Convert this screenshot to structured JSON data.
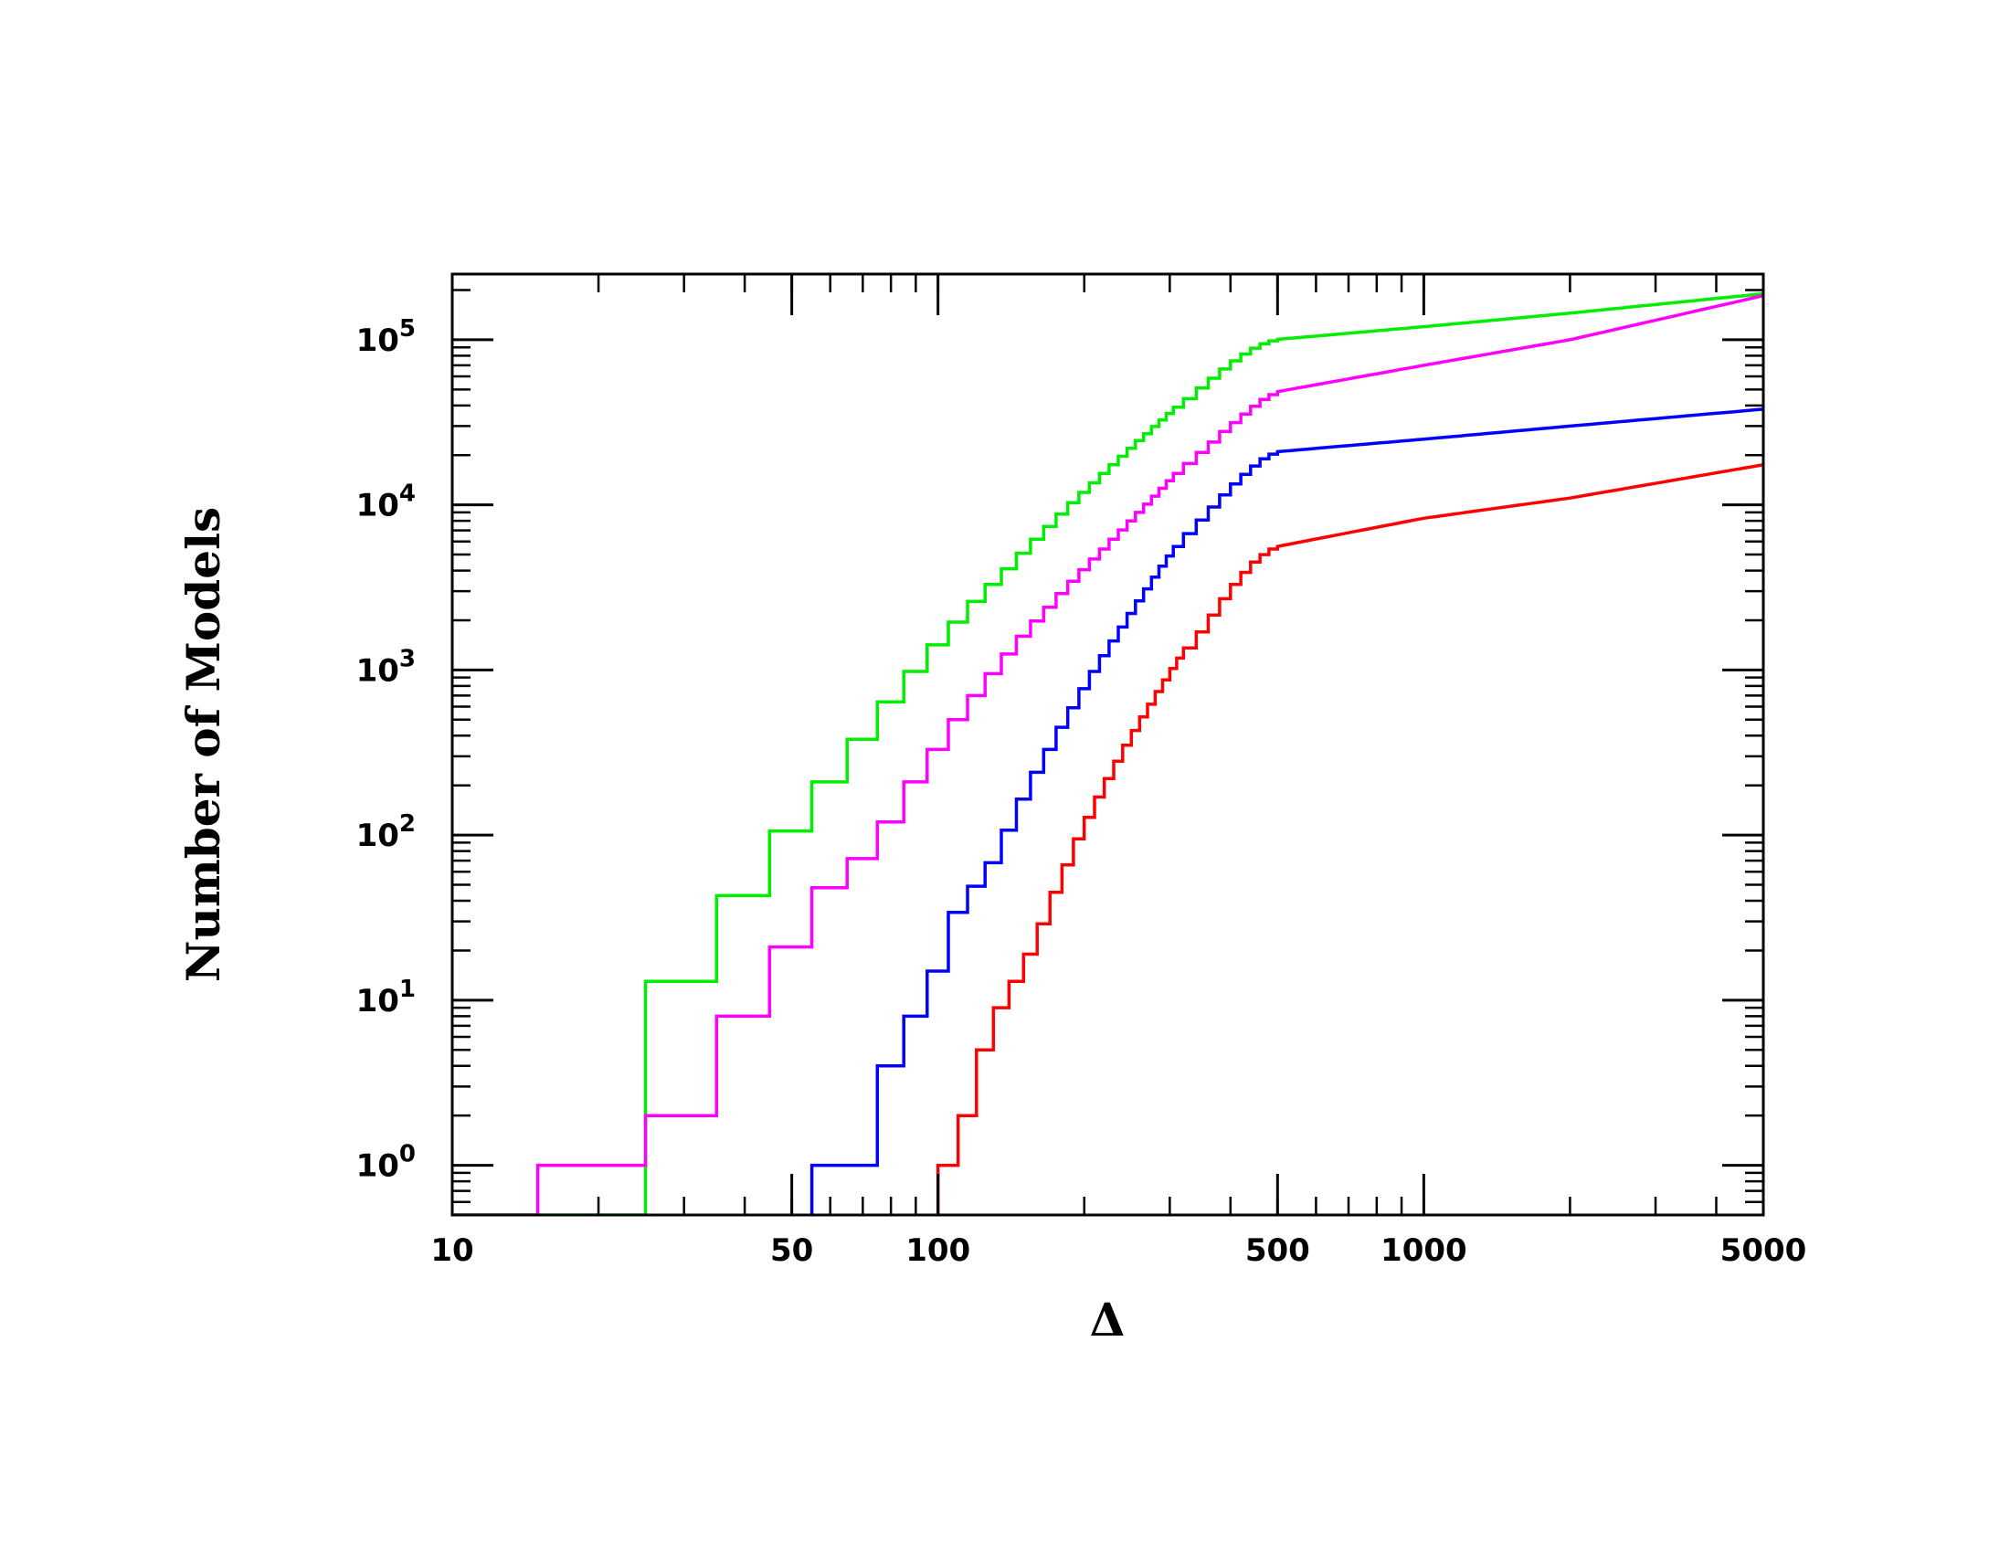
{
  "chart_data": {
    "type": "line",
    "xlabel": "Δ",
    "ylabel": "Number of Models",
    "x_scale": "log",
    "y_scale": "log",
    "xlim": [
      10,
      5000
    ],
    "ylim": [
      0.5,
      250000
    ],
    "x_ticks": [
      {
        "value": 10,
        "label": "10"
      },
      {
        "value": 50,
        "label": "50"
      },
      {
        "value": 100,
        "label": "100"
      },
      {
        "value": 500,
        "label": "500"
      },
      {
        "value": 1000,
        "label": "1000"
      },
      {
        "value": 5000,
        "label": "5000"
      }
    ],
    "y_ticks": [
      {
        "value": 1,
        "base": "10",
        "exp": "0"
      },
      {
        "value": 10,
        "base": "10",
        "exp": "1"
      },
      {
        "value": 100,
        "base": "10",
        "exp": "2"
      },
      {
        "value": 1000,
        "base": "10",
        "exp": "3"
      },
      {
        "value": 10000,
        "base": "10",
        "exp": "4"
      },
      {
        "value": 100000,
        "base": "10",
        "exp": "5"
      }
    ],
    "grid": false,
    "series": [
      {
        "color": "#00ee00",
        "step_x": [
          10,
          25,
          35,
          45,
          55,
          65,
          75,
          85,
          95,
          105,
          115,
          125,
          135,
          145,
          155,
          165,
          175,
          185,
          195,
          205,
          215,
          225,
          235,
          245,
          255,
          265,
          275,
          285,
          295,
          305,
          320,
          340,
          360,
          380,
          400,
          420,
          440,
          460,
          480,
          500
        ],
        "step_y": [
          0.5,
          13,
          43,
          106,
          210,
          380,
          640,
          980,
          1420,
          1950,
          2600,
          3300,
          4100,
          5100,
          6200,
          7400,
          8800,
          10300,
          11900,
          13600,
          15500,
          17500,
          19700,
          22000,
          24500,
          27000,
          29800,
          32700,
          35800,
          39000,
          44000,
          51000,
          58500,
          66500,
          74500,
          82000,
          89000,
          94500,
          98500,
          100500
        ],
        "curve_x": [
          500,
          1000,
          2000,
          5000
        ],
        "curve_y": [
          100500,
          120000,
          145000,
          190000
        ]
      },
      {
        "color": "#ff00ff",
        "step_x": [
          10,
          15,
          25,
          35,
          45,
          55,
          65,
          75,
          85,
          95,
          105,
          115,
          125,
          135,
          145,
          155,
          165,
          175,
          185,
          195,
          205,
          215,
          225,
          235,
          245,
          255,
          265,
          275,
          285,
          295,
          305,
          320,
          340,
          360,
          380,
          400,
          420,
          440,
          460,
          480,
          500
        ],
        "step_y": [
          0.5,
          1,
          2,
          8,
          21,
          48,
          72,
          120,
          210,
          330,
          500,
          700,
          950,
          1250,
          1600,
          1980,
          2400,
          2900,
          3450,
          4050,
          4700,
          5400,
          6200,
          7050,
          8000,
          9000,
          10100,
          11300,
          12600,
          14000,
          15500,
          17800,
          20800,
          24000,
          27800,
          31500,
          35500,
          39500,
          43500,
          46500,
          48500
        ],
        "curve_x": [
          500,
          1000,
          2000,
          5000
        ],
        "curve_y": [
          48500,
          70000,
          100000,
          185000
        ]
      },
      {
        "color": "#0000ff",
        "step_x": [
          55,
          75,
          85,
          95,
          105,
          115,
          125,
          135,
          145,
          155,
          165,
          175,
          185,
          195,
          205,
          215,
          225,
          235,
          245,
          255,
          265,
          275,
          285,
          295,
          305,
          320,
          340,
          360,
          380,
          400,
          420,
          440,
          460,
          480,
          500
        ],
        "step_y": [
          1,
          4,
          8,
          15,
          34,
          49,
          68,
          107,
          165,
          240,
          330,
          450,
          590,
          770,
          980,
          1220,
          1500,
          1820,
          2200,
          2620,
          3100,
          3650,
          4250,
          4900,
          5600,
          6700,
          8100,
          9700,
          11500,
          13400,
          15300,
          17200,
          19000,
          20300,
          21000
        ],
        "curve_x": [
          500,
          1000,
          2000,
          5000
        ],
        "curve_y": [
          21000,
          25000,
          30000,
          38000
        ]
      },
      {
        "color": "#ff0000",
        "step_x": [
          100,
          110,
          120,
          130,
          140,
          150,
          160,
          170,
          180,
          190,
          200,
          210,
          220,
          230,
          240,
          250,
          260,
          270,
          280,
          290,
          300,
          310,
          320,
          340,
          360,
          380,
          400,
          420,
          440,
          460,
          480,
          500
        ],
        "step_y": [
          1,
          2,
          5,
          9,
          13,
          19,
          29,
          45,
          66,
          95,
          128,
          170,
          220,
          280,
          350,
          430,
          520,
          620,
          740,
          870,
          1020,
          1180,
          1360,
          1700,
          2150,
          2700,
          3300,
          3900,
          4500,
          5000,
          5400,
          5600
        ],
        "curve_x": [
          500,
          1000,
          2000,
          5000
        ],
        "curve_y": [
          5600,
          8300,
          11000,
          17500
        ]
      }
    ]
  }
}
